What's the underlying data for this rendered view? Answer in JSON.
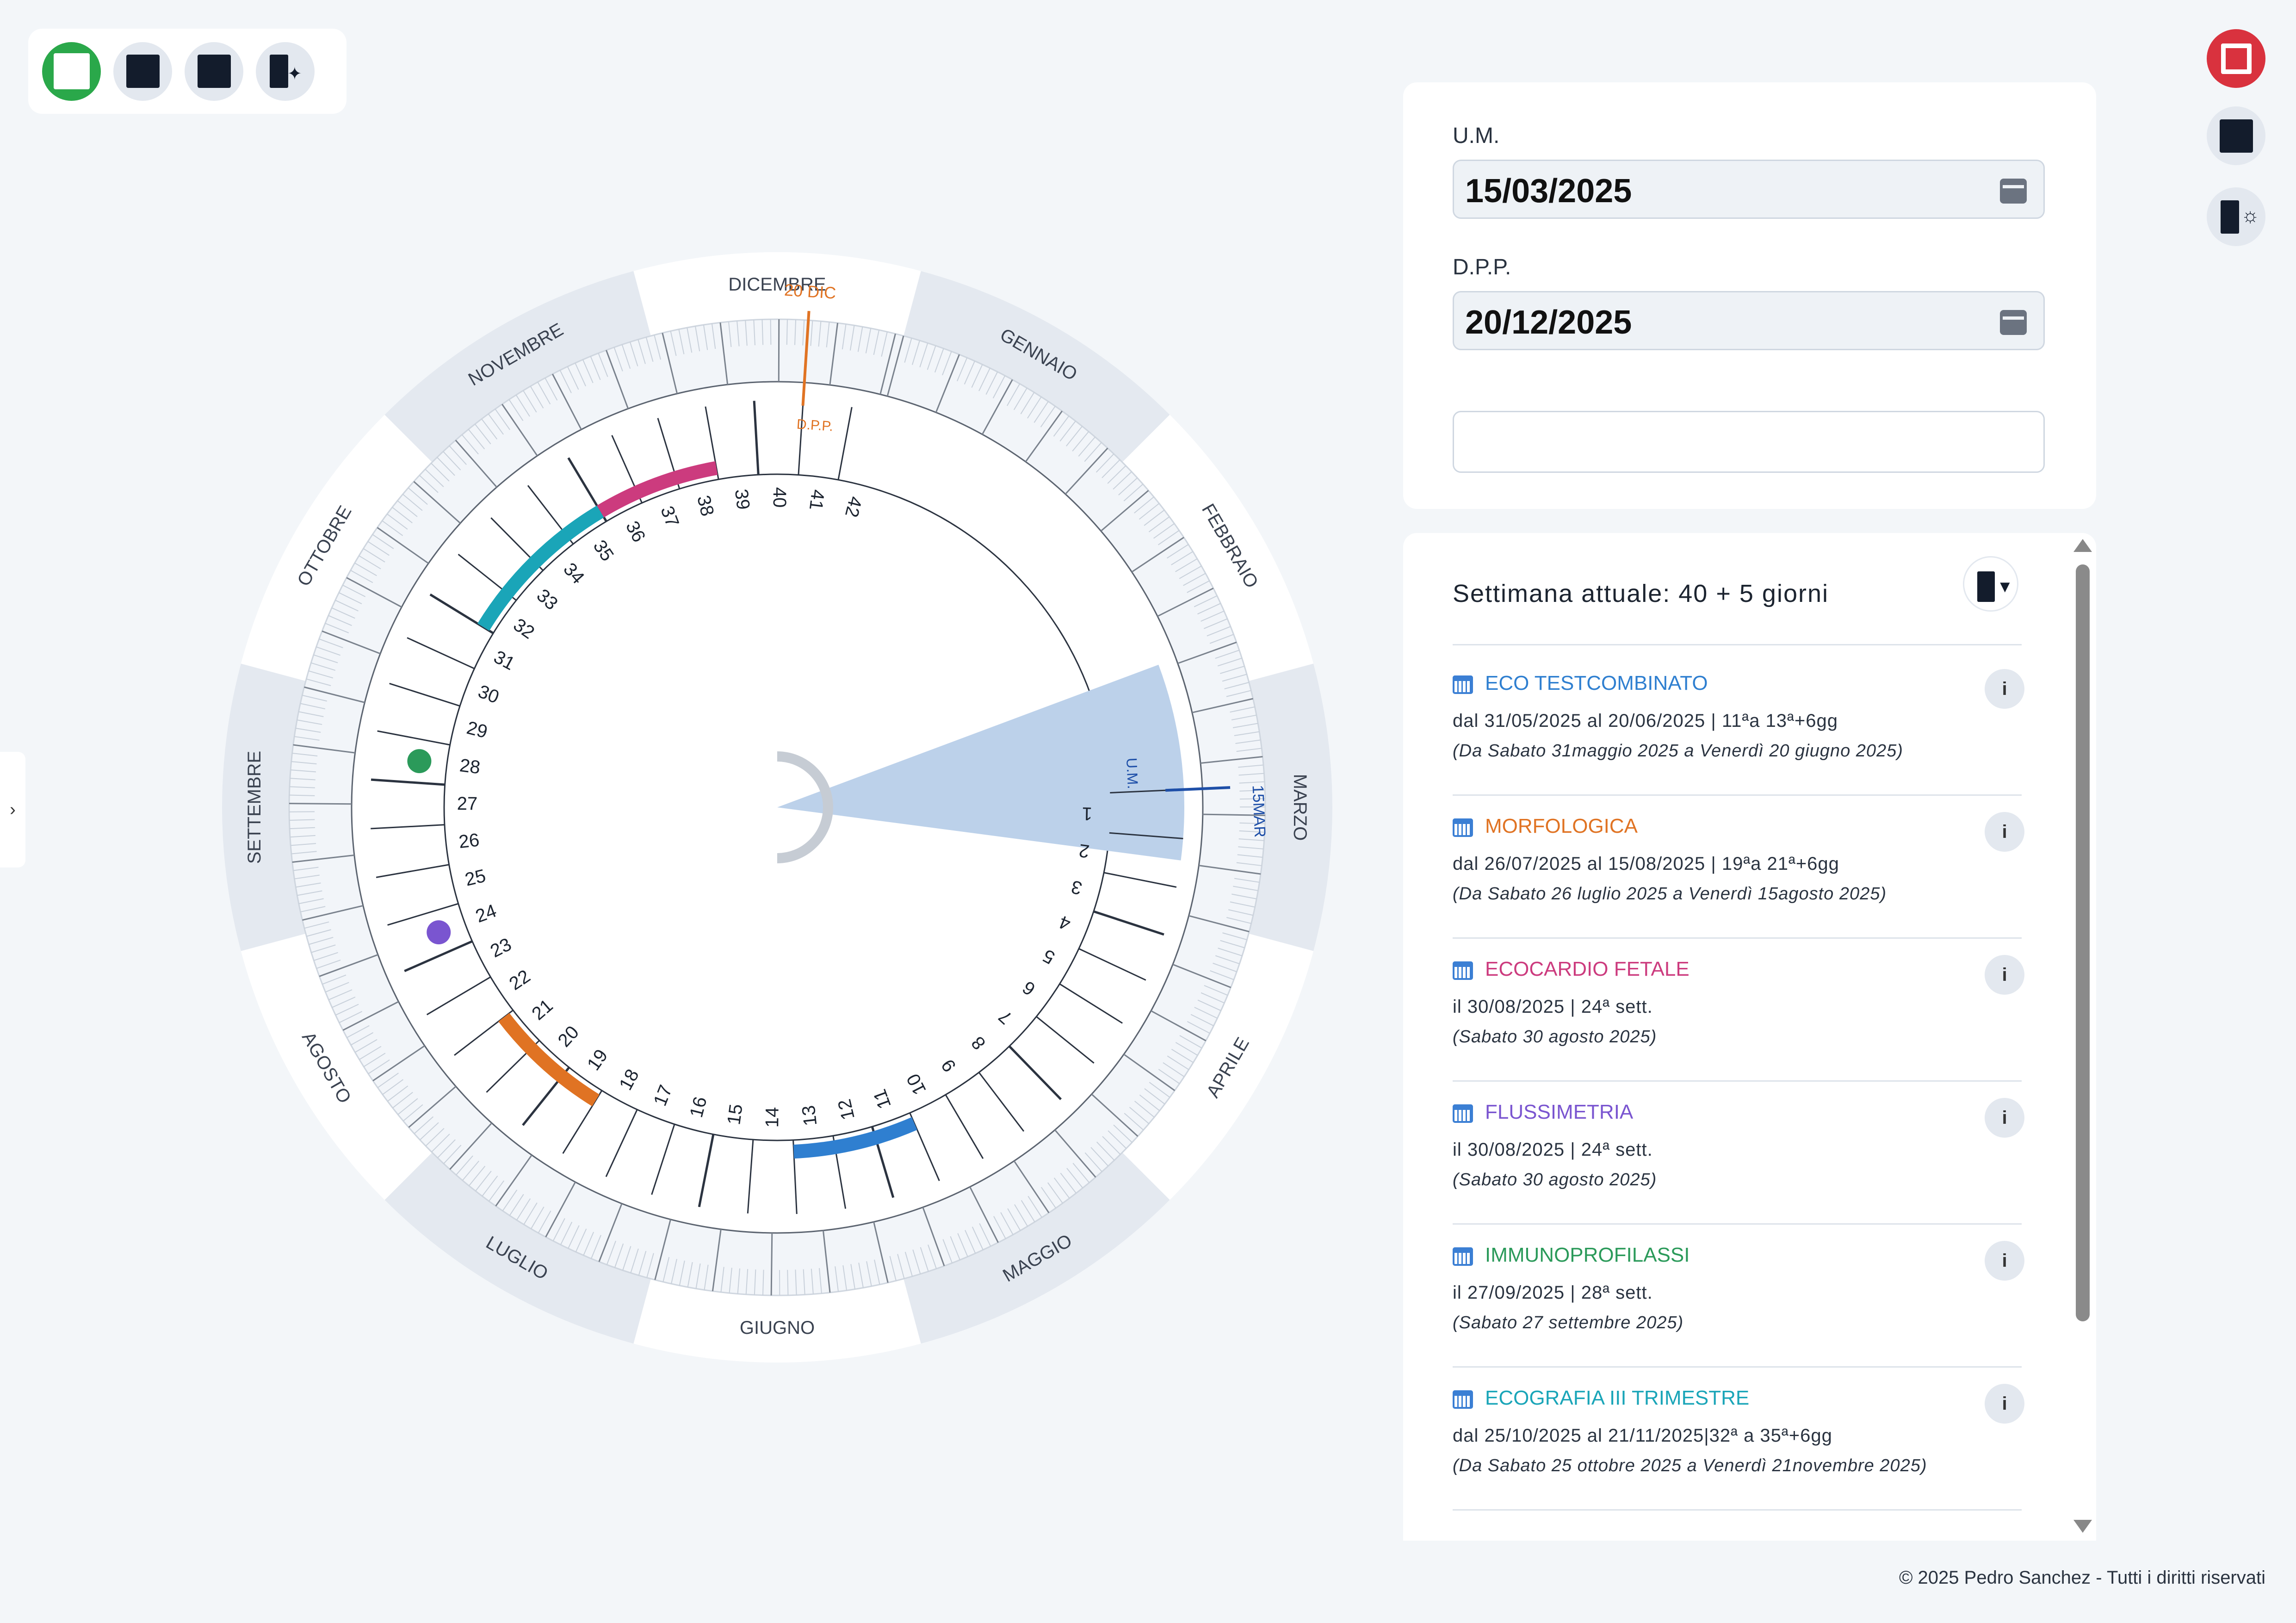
{
  "toolbar": {
    "buttons": [
      "start-button",
      "square-button-1",
      "square-button-2",
      "sparkle-button"
    ]
  },
  "form": {
    "um_label": "U.M.",
    "um_value": "15/03/2025",
    "dpp_label": "D.P.P.",
    "dpp_value": "20/12/2025",
    "extra_value": ""
  },
  "list": {
    "current_week": "Settimana attuale: 40 + 5 giorni",
    "items": [
      {
        "title": "ECO TESTCOMBINATO",
        "color": "#2f7fd0",
        "line1": "dal 31/05/2025  al 20/06/2025  | 11ªa 13ª+6gg",
        "line2": "(Da Sabato 31maggio  2025 a  Venerdì 20 giugno 2025)"
      },
      {
        "title": "MORFOLOGICA",
        "color": "#e07323",
        "line1": "dal 26/07/2025  al 15/08/2025 | 19ªa 21ª+6gg",
        "line2": "(Da Sabato 26 luglio 2025 a  Venerdì 15agosto 2025)"
      },
      {
        "title": "ECOCARDIO FETALE",
        "color": "#cc3b7e",
        "line1": "il 30/08/2025  | 24ª sett.",
        "line2": "(Sabato 30 agosto 2025)"
      },
      {
        "title": "FLUSSIMETRIA",
        "color": "#7a55d0",
        "line1": "il 30/08/2025  | 24ª sett.",
        "line2": "(Sabato 30 agosto 2025)"
      },
      {
        "title": "IMMUNOPROFILASSI",
        "color": "#2b9a5a",
        "line1": "il 27/09/2025  | 28ª sett.",
        "line2": "(Sabato 27 settembre 2025)"
      },
      {
        "title": "ECOGRAFIA III TRIMESTRE",
        "color": "#1aa5b8",
        "line1": "dal 25/10/2025  al 21/11/2025|32ª a  35ª+6gg",
        "line2": "(Da Sabato 25 ottobre  2025 a  Venerdì 21novembre  2025)"
      }
    ],
    "info_label": "i"
  },
  "wheel": {
    "months": [
      "GENNAIO",
      "FEBBRAIO",
      "MARZO",
      "APRILE",
      "MAGGIO",
      "GIUGNO",
      "LUGLIO",
      "AGOSTO",
      "SETTEMBRE",
      "OTTOBRE",
      "NOVEMBRE",
      "DICEMBRE"
    ],
    "dpp_marker_label": "20 DIC",
    "dpp_short": "D.P.P.",
    "um_marker_label": "15MAR",
    "um_short": "U.M.",
    "weeks": [
      1,
      2,
      3,
      4,
      5,
      6,
      7,
      8,
      9,
      10,
      11,
      12,
      13,
      14,
      15,
      16,
      17,
      18,
      19,
      20,
      21,
      22,
      23,
      24,
      25,
      26,
      27,
      28,
      29,
      30,
      31,
      32,
      33,
      34,
      35,
      36,
      37,
      38,
      39,
      40,
      41,
      42
    ]
  },
  "footer": "© 2025 Pedro Sanchez -  Tutti i diritti riservati",
  "left_tab_label": "›"
}
